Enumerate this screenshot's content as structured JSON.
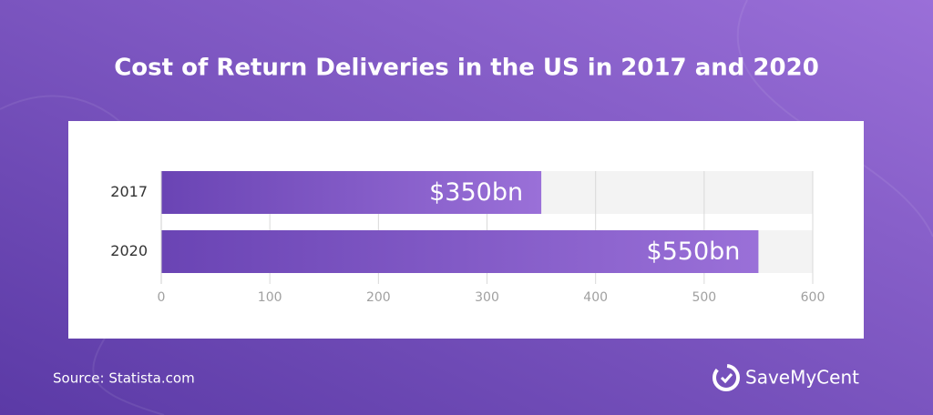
{
  "chart_data": {
    "type": "bar",
    "orientation": "horizontal",
    "title": "Cost of Return Deliveries in the US in 2017 and 2020",
    "categories": [
      "2017",
      "2020"
    ],
    "values": [
      350,
      550
    ],
    "value_labels": [
      "$350bn",
      "$550bn"
    ],
    "color": "#7b52c4",
    "xlim": [
      0,
      600
    ],
    "xticks": [
      0,
      100,
      200,
      300,
      400,
      500,
      600
    ],
    "grid": true
  },
  "footer": {
    "source": "Source: Statista.com",
    "brand": "SaveMyCent"
  }
}
